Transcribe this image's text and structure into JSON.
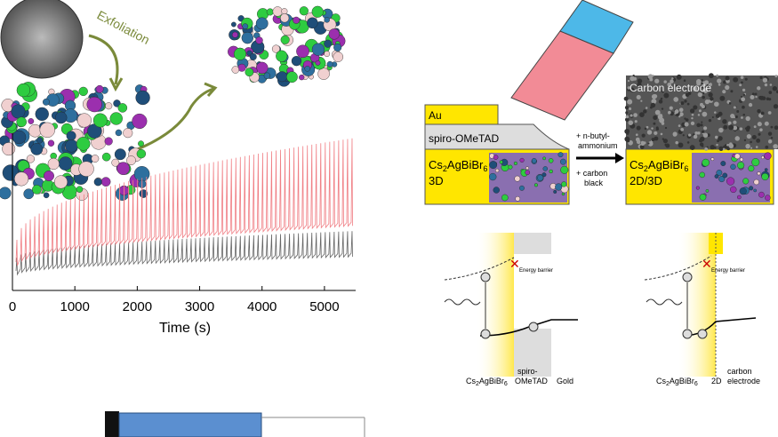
{
  "exfoliation": "Exfoliation",
  "plot": {
    "xlabel": "Time (s)",
    "xlim": [
      0,
      5500
    ],
    "xticks": [
      0,
      1000,
      2000,
      3000,
      4000,
      5000
    ]
  },
  "schematic": {
    "layers": [
      "Au",
      "spiro-OMeTAD"
    ],
    "formula": [
      "Cs",
      "2",
      "AgBiBr",
      "6"
    ],
    "left_phase": "3D",
    "steps": [
      "+ n-butyl-",
      "ammonium",
      "+ carbon",
      "black"
    ],
    "electrode": "Carbon electrode",
    "right_phase": "2D/3D"
  },
  "band_left": {
    "barrier": "Energy barrier",
    "labels": [
      "spiro-",
      "OMeTAD",
      "Gold"
    ]
  },
  "band_right": {
    "barrier": "Energy barrier",
    "labels": [
      "2D",
      "carbon",
      "electrode"
    ]
  }
}
